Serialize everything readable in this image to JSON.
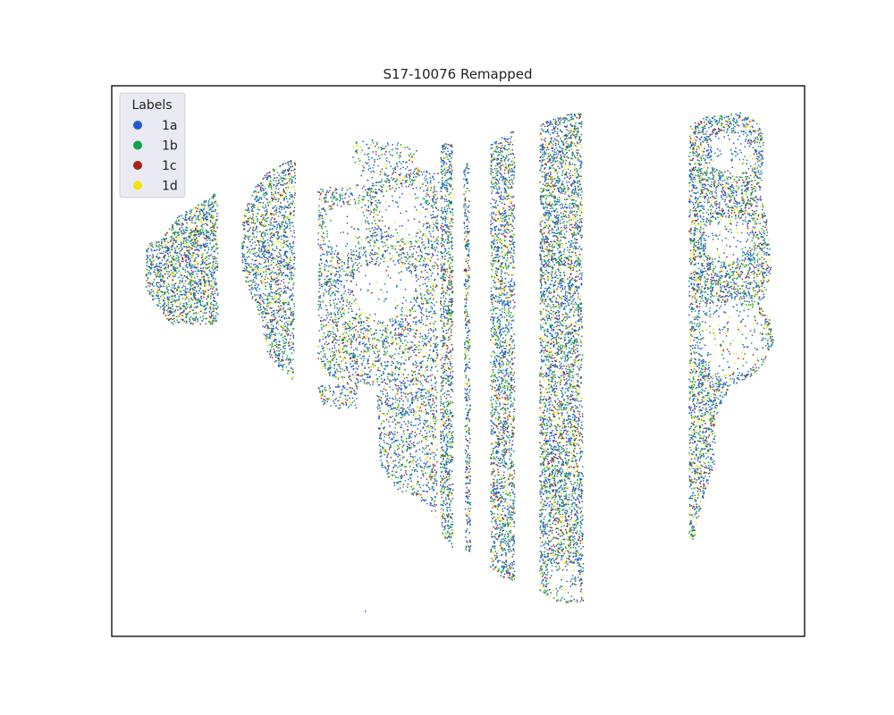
{
  "figure": {
    "title": "S17-10076 Remapped"
  },
  "chart_data": {
    "type": "scatter",
    "title": "S17-10076 Remapped",
    "xlabel": "",
    "ylabel": "",
    "axes_visible": false,
    "grid": false,
    "legend": {
      "title": "Labels",
      "placement": "top-left",
      "entries": [
        {
          "label": "1a",
          "color": "#1f5bd6"
        },
        {
          "label": "1b",
          "color": "#12a14a"
        },
        {
          "label": "1c",
          "color": "#a8231b"
        },
        {
          "label": "1d",
          "color": "#f2e00f"
        }
      ]
    },
    "series": [
      {
        "name": "1a",
        "color": "#1f5bd6"
      },
      {
        "name": "1b",
        "color": "#12a14a"
      },
      {
        "name": "1c",
        "color": "#a8231b"
      },
      {
        "name": "1d",
        "color": "#f2e00f"
      }
    ]
  }
}
